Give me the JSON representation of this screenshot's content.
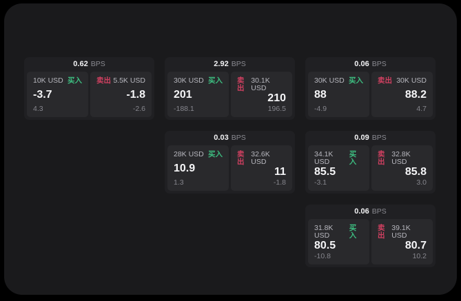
{
  "labels": {
    "bps_unit": "BPS",
    "buy": "买入",
    "sell": "卖出"
  },
  "colors": {
    "buy_accent": "#3dbd80",
    "sell_accent": "#cf4060",
    "panel_background": "#1a1a1c",
    "card_background": "#202023",
    "pane_background": "#29292c"
  },
  "cards": [
    {
      "bps": "0.62",
      "buy": {
        "size": "10K USD",
        "value": "-3.7",
        "delta": "4.3"
      },
      "sell": {
        "size": "5.5K USD",
        "value": "-1.8",
        "delta": "-2.6"
      }
    },
    {
      "bps": "2.92",
      "buy": {
        "size": "30K USD",
        "value": "201",
        "delta": "-188.1"
      },
      "sell": {
        "size": "30.1K USD",
        "value": "210",
        "delta": "196.5"
      }
    },
    {
      "bps": "0.06",
      "buy": {
        "size": "30K USD",
        "value": "88",
        "delta": "-4.9"
      },
      "sell": {
        "size": "30K USD",
        "value": "88.2",
        "delta": "4.7"
      }
    },
    {
      "bps": "0.03",
      "buy": {
        "size": "28K USD",
        "value": "10.9",
        "delta": "1.3"
      },
      "sell": {
        "size": "32.6K USD",
        "value": "11",
        "delta": "-1.8"
      }
    },
    {
      "bps": "0.09",
      "buy": {
        "size": "34.1K USD",
        "value": "85.5",
        "delta": "-3.1"
      },
      "sell": {
        "size": "32.8K USD",
        "value": "85.8",
        "delta": "3.0"
      }
    },
    {
      "bps": "0.06",
      "buy": {
        "size": "31.8K USD",
        "value": "80.5",
        "delta": "-10.8"
      },
      "sell": {
        "size": "39.1K USD",
        "value": "80.7",
        "delta": "10.2"
      }
    }
  ]
}
